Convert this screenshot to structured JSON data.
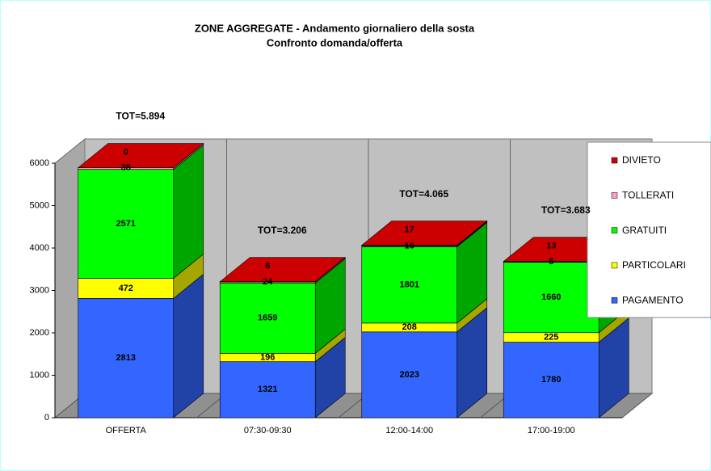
{
  "chart_data": {
    "type": "bar3d_stacked",
    "title": "ZONE AGGREGATE - Andamento giornaliero della sosta",
    "subtitle": "Confronto domanda/offerta",
    "categories": [
      "OFFERTA",
      "07:30-09:30",
      "12:00-14:00",
      "17:00-19:00"
    ],
    "series": [
      {
        "name": "PAGAMENTO",
        "color": "#3366ff",
        "values": [
          2813,
          1321,
          2023,
          1780
        ]
      },
      {
        "name": "PARTICOLARI",
        "color": "#ffff00",
        "values": [
          472,
          196,
          208,
          225
        ]
      },
      {
        "name": "GRATUITI",
        "color": "#00ff00",
        "values": [
          2571,
          1659,
          1801,
          1660
        ]
      },
      {
        "name": "TOLLERATI",
        "color": "#ff99cc",
        "values": [
          38,
          24,
          16,
          5
        ]
      },
      {
        "name": "DIVIETO",
        "color": "#cc0000",
        "values": [
          0,
          6,
          17,
          13
        ]
      }
    ],
    "annotations": [
      "TOT=5.894",
      "TOT=3.206",
      "TOT=4.065",
      "TOT=3.683"
    ],
    "ylim": [
      0,
      6000
    ],
    "yticks": [
      0,
      1000,
      2000,
      3000,
      4000,
      5000,
      6000
    ],
    "legend": "right"
  }
}
